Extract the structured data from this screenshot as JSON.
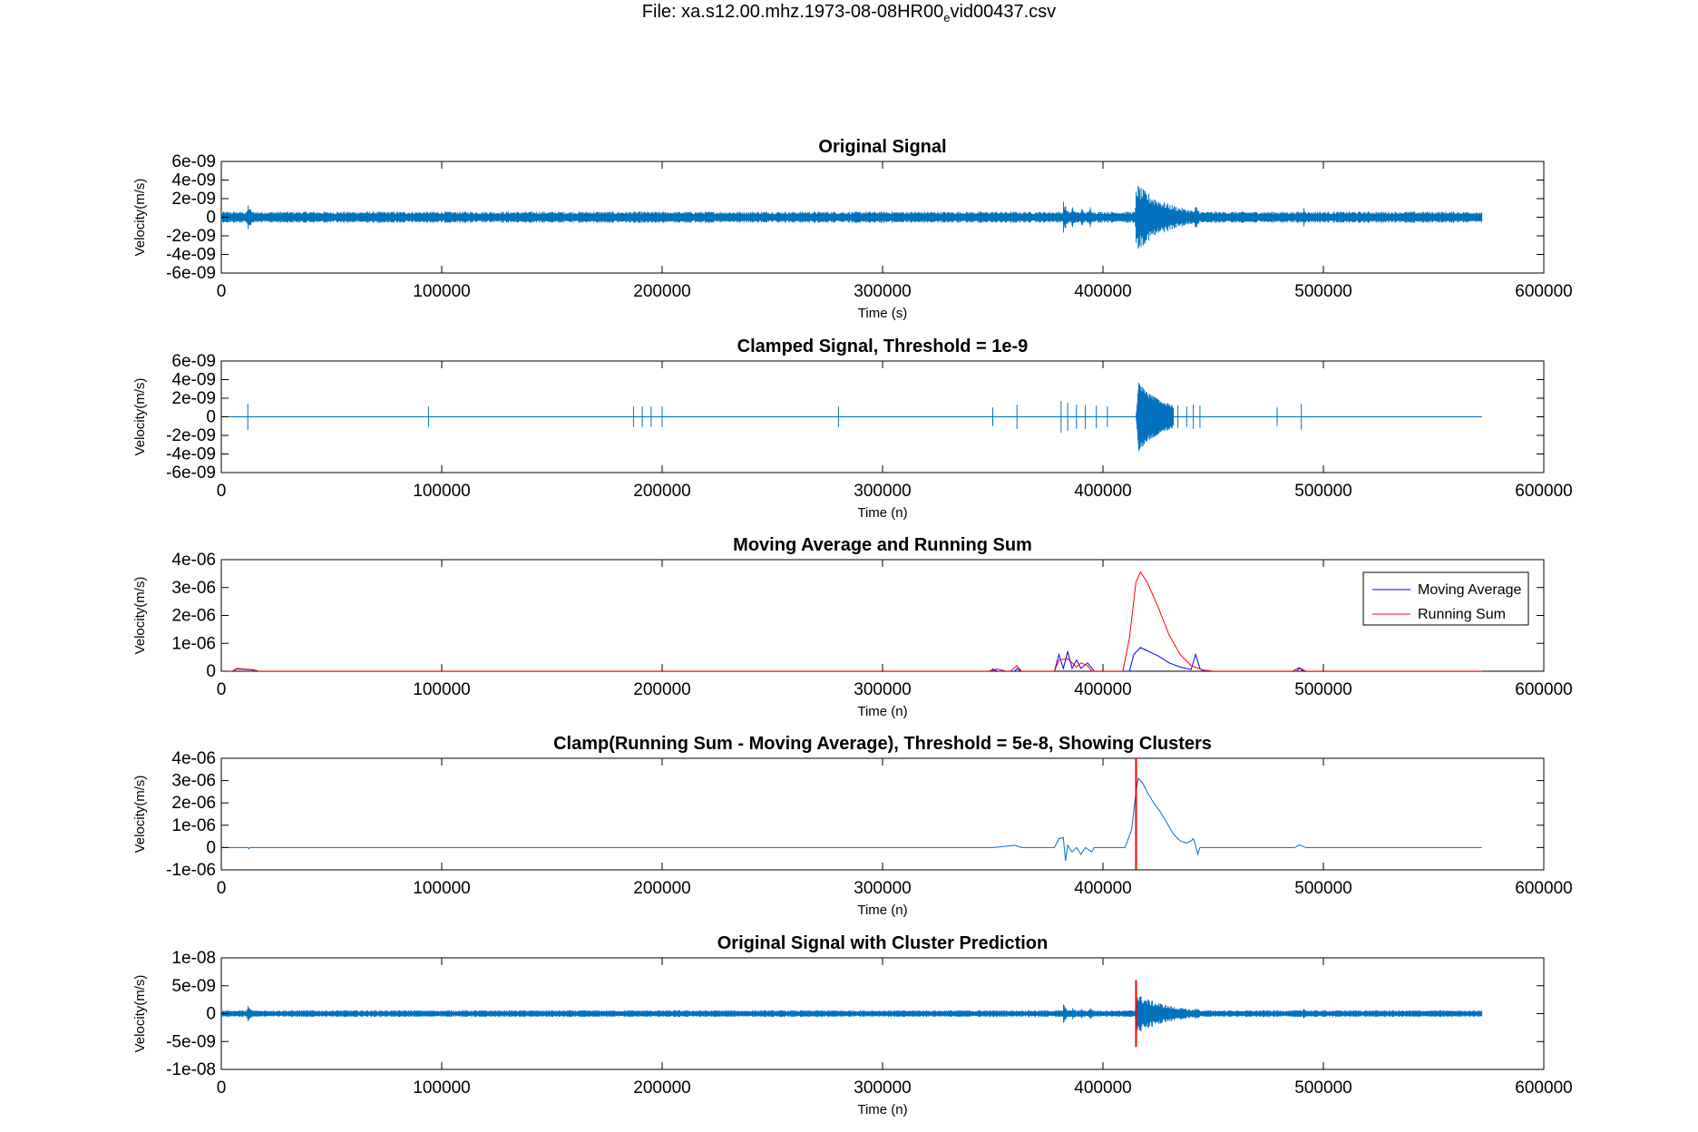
{
  "figure": {
    "title_prefix": "File: xa.s12.00.mhz.1973-08-08HR00",
    "title_subscript": "e",
    "title_suffix": "vid00437.csv"
  },
  "colors": {
    "signal": "#0072BD",
    "moving_average": "#0000FF",
    "running_sum": "#FF0000",
    "cluster_line": "#FF0000",
    "axes": "#000000"
  },
  "chart_data": [
    {
      "type": "line",
      "title": "Original Signal",
      "xlabel": "Time (s)",
      "ylabel": "Velocity(m/s)",
      "xlim": [
        0,
        600000
      ],
      "ylim": [
        -6e-09,
        6e-09
      ],
      "xticks": [
        "0",
        "100000",
        "200000",
        "300000",
        "400000",
        "500000",
        "600000"
      ],
      "yticks": [
        "6e-09",
        "4e-09",
        "2e-09",
        "0",
        "-2e-09",
        "-4e-09",
        "-6e-09"
      ],
      "series": [
        {
          "role": "seismic-trace",
          "x_end": 572000,
          "noise": 6e-10,
          "bursts": [
            [
              12000,
              1.5e-09
            ],
            [
              382000,
              1.8e-09
            ],
            [
              386000,
              1.2e-09
            ],
            [
              390000,
              1.1e-09
            ],
            [
              394000,
              1.3e-09
            ],
            [
              415000,
              3.7e-09
            ],
            [
              442000,
              1.4e-09
            ],
            [
              491000,
              1.2e-09
            ]
          ]
        }
      ]
    },
    {
      "type": "line",
      "title": "Clamped Signal, Threshold = 1e-9",
      "xlabel": "Time (n)",
      "ylabel": "Velocity(m/s)",
      "xlim": [
        0,
        600000
      ],
      "ylim": [
        -6e-09,
        6e-09
      ],
      "xticks": [
        "0",
        "100000",
        "200000",
        "300000",
        "400000",
        "500000",
        "600000"
      ],
      "yticks": [
        "6e-09",
        "4e-09",
        "2e-09",
        "0",
        "-2e-09",
        "-4e-09",
        "-6e-09"
      ],
      "series": [
        {
          "role": "clamped-trace",
          "x_end": 572000,
          "spikes": [
            [
              12000,
              1.4e-09
            ],
            [
              94000,
              1.1e-09
            ],
            [
              187000,
              1.1e-09
            ],
            [
              191000,
              1.1e-09
            ],
            [
              195000,
              1.1e-09
            ],
            [
              200000,
              1.1e-09
            ],
            [
              280000,
              1.1e-09
            ],
            [
              350000,
              1e-09
            ],
            [
              361000,
              1.3e-09
            ],
            [
              381000,
              1.7e-09
            ],
            [
              384000,
              1.5e-09
            ],
            [
              388000,
              1.3e-09
            ],
            [
              392000,
              1.3e-09
            ],
            [
              397000,
              1.2e-09
            ],
            [
              402000,
              1.1e-09
            ],
            [
              434000,
              1.2e-09
            ],
            [
              438000,
              1.1e-09
            ],
            [
              441000,
              1.3e-09
            ],
            [
              444000,
              1.2e-09
            ],
            [
              479000,
              1e-09
            ],
            [
              490000,
              1.4e-09
            ]
          ],
          "burst": [
            415000,
            3.7e-09
          ]
        }
      ]
    },
    {
      "type": "line",
      "title": "Moving Average and Running Sum",
      "xlabel": "Time (n)",
      "ylabel": "Velocity(m/s)",
      "xlim": [
        0,
        600000
      ],
      "ylim": [
        0,
        4e-06
      ],
      "xticks": [
        "0",
        "100000",
        "200000",
        "300000",
        "400000",
        "500000",
        "600000"
      ],
      "yticks": [
        "4e-06",
        "3e-06",
        "2e-06",
        "1e-06",
        "0"
      ],
      "legend": [
        "Moving Average",
        "Running Sum"
      ],
      "legend_position": "top-right",
      "series": [
        {
          "name": "Moving Average",
          "points": [
            [
              0,
              0
            ],
            [
              5000,
              0
            ],
            [
              7000,
              8e-08
            ],
            [
              14000,
              5e-08
            ],
            [
              15000,
              0
            ],
            [
              349000,
              0
            ],
            [
              350000,
              8e-08
            ],
            [
              352000,
              0
            ],
            [
              360000,
              0
            ],
            [
              361000,
              1e-07
            ],
            [
              363000,
              0
            ],
            [
              378000,
              0
            ],
            [
              380000,
              6e-07
            ],
            [
              382000,
              1e-07
            ],
            [
              384000,
              7e-07
            ],
            [
              386000,
              1e-07
            ],
            [
              388000,
              4e-07
            ],
            [
              390000,
              1e-07
            ],
            [
              393000,
              3e-07
            ],
            [
              396000,
              0
            ],
            [
              412000,
              0
            ],
            [
              414000,
              6e-07
            ],
            [
              417000,
              8.5e-07
            ],
            [
              421000,
              7e-07
            ],
            [
              425000,
              5.5e-07
            ],
            [
              430000,
              3e-07
            ],
            [
              435000,
              1.5e-07
            ],
            [
              440000,
              6e-08
            ],
            [
              442000,
              6e-07
            ],
            [
              444000,
              1e-07
            ],
            [
              446000,
              0
            ],
            [
              488000,
              0
            ],
            [
              489000,
              1.2e-07
            ],
            [
              491000,
              0
            ],
            [
              572000,
              0
            ]
          ]
        },
        {
          "name": "Running Sum",
          "points": [
            [
              0,
              0
            ],
            [
              5000,
              0
            ],
            [
              7000,
              1e-07
            ],
            [
              15000,
              5e-08
            ],
            [
              17000,
              0
            ],
            [
              348000,
              0
            ],
            [
              352000,
              8e-08
            ],
            [
              356000,
              0
            ],
            [
              358000,
              0
            ],
            [
              361000,
              2e-07
            ],
            [
              363000,
              0
            ],
            [
              378000,
              0
            ],
            [
              380000,
              4e-07
            ],
            [
              382000,
              4.3e-07
            ],
            [
              384000,
              4.5e-07
            ],
            [
              386000,
              3e-07
            ],
            [
              388000,
              1.5e-07
            ],
            [
              390000,
              3e-07
            ],
            [
              393000,
              2e-07
            ],
            [
              395000,
              0
            ],
            [
              409000,
              0
            ],
            [
              412000,
              1.2e-06
            ],
            [
              415000,
              3.2e-06
            ],
            [
              417000,
              3.55e-06
            ],
            [
              420000,
              3.2e-06
            ],
            [
              425000,
              2.3e-06
            ],
            [
              430000,
              1.3e-06
            ],
            [
              435000,
              6e-07
            ],
            [
              440000,
              2e-07
            ],
            [
              445000,
              5e-08
            ],
            [
              450000,
              0
            ],
            [
              486000,
              0
            ],
            [
              489000,
              1.3e-07
            ],
            [
              492000,
              0
            ],
            [
              572000,
              0
            ]
          ]
        }
      ]
    },
    {
      "type": "line",
      "title": "Clamp(Running Sum - Moving Average), Threshold = 5e-8, Showing Clusters",
      "xlabel": "Time (n)",
      "ylabel": "Velocity(m/s)",
      "xlim": [
        0,
        600000
      ],
      "ylim": [
        -1e-06,
        4e-06
      ],
      "xticks": [
        "0",
        "100000",
        "200000",
        "300000",
        "400000",
        "500000",
        "600000"
      ],
      "yticks": [
        "4e-06",
        "3e-06",
        "2e-06",
        "1e-06",
        "0",
        "-1e-06"
      ],
      "cluster_x": 415000,
      "series": [
        {
          "role": "difference",
          "points": [
            [
              0,
              0
            ],
            [
              12000,
              0
            ],
            [
              12500,
              -5e-08
            ],
            [
              13000,
              0
            ],
            [
              350000,
              0
            ],
            [
              355000,
              5e-08
            ],
            [
              360000,
              1e-07
            ],
            [
              363000,
              0
            ],
            [
              378000,
              0
            ],
            [
              380000,
              4e-07
            ],
            [
              382000,
              4.5e-07
            ],
            [
              383000,
              -6e-07
            ],
            [
              384000,
              1e-07
            ],
            [
              386000,
              -2e-07
            ],
            [
              388000,
              0
            ],
            [
              390000,
              -3e-07
            ],
            [
              392000,
              0
            ],
            [
              395000,
              -2e-07
            ],
            [
              396000,
              0
            ],
            [
              410000,
              0
            ],
            [
              413000,
              8e-07
            ],
            [
              415000,
              2.5e-06
            ],
            [
              416000,
              3.1e-06
            ],
            [
              418000,
              2.9e-06
            ],
            [
              420000,
              2.5e-06
            ],
            [
              423000,
              2e-06
            ],
            [
              426000,
              1.6e-06
            ],
            [
              429000,
              1.1e-06
            ],
            [
              432000,
              6e-07
            ],
            [
              435000,
              3e-07
            ],
            [
              438000,
              2e-07
            ],
            [
              440000,
              3e-07
            ],
            [
              441000,
              4e-07
            ],
            [
              442000,
              1e-07
            ],
            [
              443000,
              -3e-07
            ],
            [
              444000,
              0
            ],
            [
              487000,
              0
            ],
            [
              489000,
              1.2e-07
            ],
            [
              492000,
              0
            ],
            [
              572000,
              0
            ]
          ]
        }
      ]
    },
    {
      "type": "line",
      "title": "Original Signal with Cluster Prediction",
      "xlabel": "Time (n)",
      "ylabel": "Velocity(m/s)",
      "xlim": [
        0,
        600000
      ],
      "ylim": [
        -1e-08,
        1e-08
      ],
      "xticks": [
        "0",
        "100000",
        "200000",
        "300000",
        "400000",
        "500000",
        "600000"
      ],
      "yticks": [
        "1e-08",
        "5e-09",
        "0",
        "-5e-09",
        "-1e-08"
      ],
      "cluster_x": 415000,
      "cluster_span": [
        -6e-09,
        6e-09
      ],
      "series": [
        {
          "role": "seismic-trace",
          "x_end": 572000,
          "noise": 6e-10,
          "bursts": [
            [
              12000,
              1.5e-09
            ],
            [
              382000,
              1.8e-09
            ],
            [
              386000,
              1.2e-09
            ],
            [
              390000,
              1.1e-09
            ],
            [
              394000,
              1.3e-09
            ],
            [
              415000,
              3.7e-09
            ],
            [
              442000,
              1.4e-09
            ],
            [
              491000,
              1.2e-09
            ]
          ]
        }
      ]
    }
  ]
}
